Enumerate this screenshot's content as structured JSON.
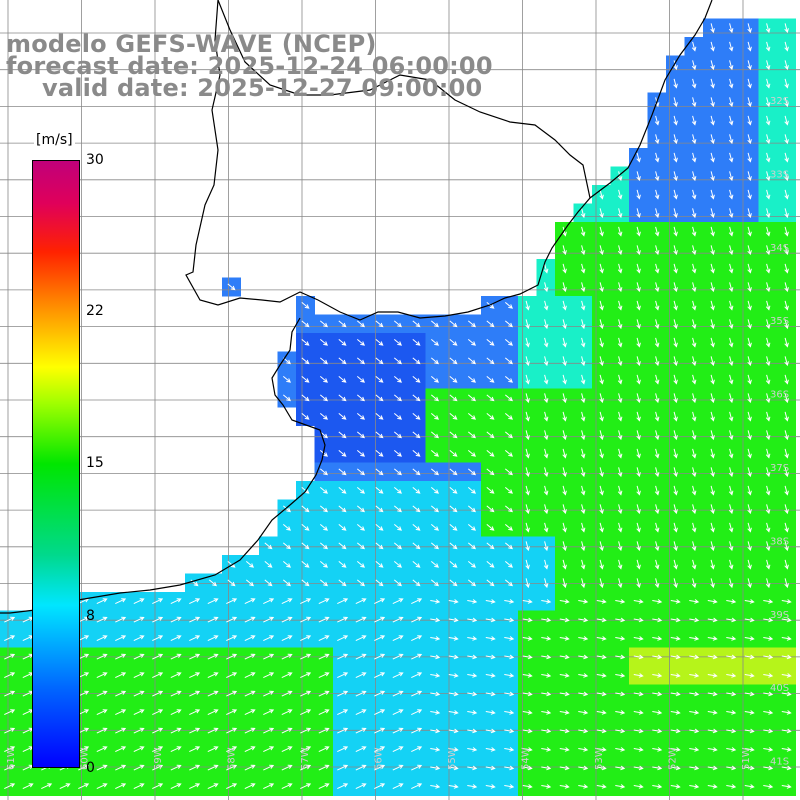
{
  "title": {
    "model": "modelo GEFS-WAVE (NCEP)",
    "forecast": "forecast date: 2025-12-24 06:00:00",
    "valid": "valid date: 2025-12-27 09:00:00"
  },
  "colorbar": {
    "units": "[m/s]",
    "ticks": [
      "30",
      "22",
      "15",
      "8",
      "0"
    ],
    "tick_values": [
      30,
      22,
      15,
      8,
      0
    ],
    "colors": [
      "#0000ff",
      "#0066ff",
      "#00e6ff",
      "#00e600",
      "#ffff00",
      "#ff9900",
      "#ff2200",
      "#c0007a"
    ]
  },
  "lat_labels": [
    "32S",
    "33S",
    "34S",
    "35S",
    "36S",
    "37S",
    "38S",
    "39S",
    "40S",
    "41S"
  ],
  "lon_labels": [
    "61W",
    "60W",
    "59W",
    "58W",
    "57W",
    "56W",
    "55W",
    "54W",
    "53W",
    "52W",
    "51W"
  ],
  "colors": {
    "land": "#ffffff",
    "grid": "#888888",
    "coast": "#000000",
    "arrow": "#ffffff",
    "dark_blue": "#1c58f0",
    "blue": "#2e7df8",
    "cyan": "#14d2f5",
    "aqua": "#19f0c8",
    "green": "#22ee16",
    "yellow_green": "#b6f41a"
  }
}
